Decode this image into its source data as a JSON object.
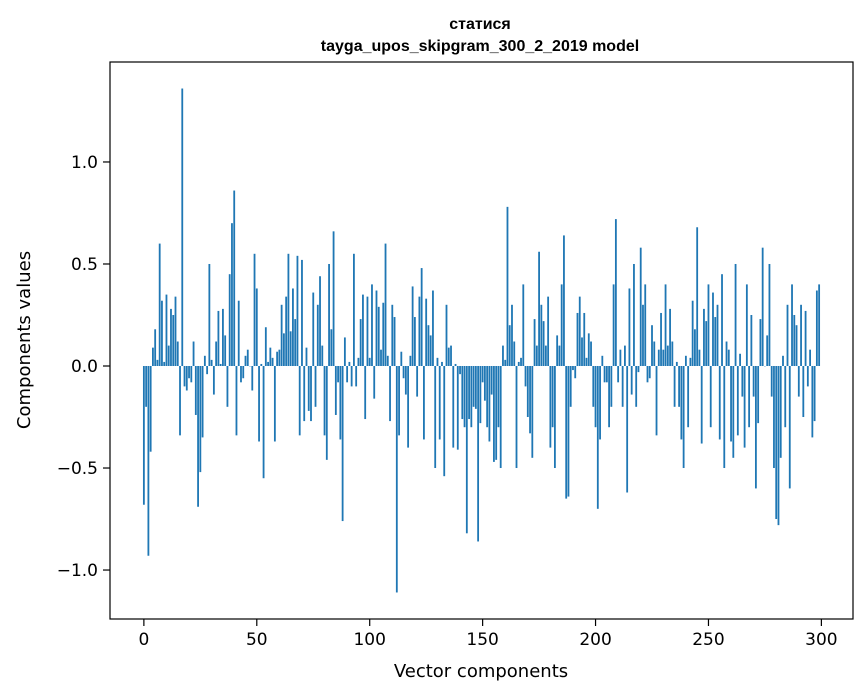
{
  "chart_data": {
    "type": "bar",
    "title": "статися",
    "subtitle": "tayga_upos_skipgram_300_2_2019 model",
    "xlabel": "Vector components",
    "ylabel": "Components values",
    "xlim": [
      -15,
      314
    ],
    "ylim": [
      -1.24,
      1.49
    ],
    "x_ticks": [
      0,
      50,
      100,
      150,
      200,
      250,
      300
    ],
    "x_tick_labels": [
      "0",
      "50",
      "100",
      "150",
      "200",
      "250",
      "300"
    ],
    "y_ticks": [
      -1.0,
      -0.5,
      0.0,
      0.5,
      1.0
    ],
    "y_tick_labels": [
      "−1.0",
      "−0.5",
      "0.0",
      "0.5",
      "1.0"
    ],
    "bar_color": "#1f77b4",
    "grid": false,
    "values": [
      -0.68,
      -0.2,
      -0.93,
      -0.42,
      0.09,
      0.18,
      0.03,
      0.6,
      0.32,
      0.02,
      0.35,
      0.1,
      0.28,
      0.25,
      0.34,
      0.12,
      -0.34,
      1.36,
      -0.1,
      -0.12,
      -0.06,
      -0.08,
      0.12,
      -0.24,
      -0.69,
      -0.52,
      -0.35,
      0.05,
      -0.04,
      0.5,
      0.03,
      -0.14,
      0.12,
      0.27,
      0.01,
      0.28,
      0.15,
      -0.2,
      0.45,
      0.7,
      0.86,
      -0.34,
      0.32,
      -0.08,
      -0.06,
      0.05,
      0.08,
      0.0,
      -0.12,
      0.55,
      0.38,
      -0.37,
      0.01,
      -0.55,
      0.19,
      0.02,
      0.09,
      0.04,
      -0.37,
      0.07,
      0.08,
      0.3,
      0.16,
      0.34,
      0.55,
      0.17,
      0.38,
      0.23,
      0.54,
      -0.34,
      0.52,
      -0.27,
      0.09,
      -0.22,
      -0.27,
      0.36,
      -0.2,
      0.3,
      0.44,
      0.1,
      -0.34,
      -0.46,
      0.5,
      0.18,
      0.66,
      -0.24,
      -0.08,
      -0.36,
      -0.76,
      0.14,
      -0.08,
      0.02,
      -0.1,
      0.55,
      -0.1,
      0.04,
      0.23,
      0.35,
      -0.26,
      0.34,
      0.04,
      0.4,
      -0.16,
      0.37,
      0.29,
      0.08,
      0.31,
      0.6,
      0.05,
      -0.27,
      0.3,
      0.24,
      -1.11,
      -0.34,
      0.07,
      -0.06,
      -0.14,
      -0.4,
      0.05,
      0.39,
      0.24,
      -0.15,
      0.34,
      0.48,
      -0.36,
      0.33,
      0.2,
      0.15,
      0.37,
      -0.5,
      0.04,
      -0.36,
      0.02,
      -0.54,
      0.3,
      0.09,
      0.1,
      -0.4,
      0.01,
      -0.41,
      -0.04,
      -0.26,
      -0.3,
      -0.82,
      -0.26,
      -0.3,
      -0.2,
      -0.21,
      -0.86,
      -0.28,
      -0.08,
      -0.17,
      -0.3,
      -0.37,
      -0.14,
      -0.47,
      -0.46,
      -0.3,
      -0.5,
      0.1,
      0.03,
      0.78,
      0.2,
      0.3,
      0.12,
      -0.5,
      0.02,
      0.04,
      0.4,
      -0.1,
      -0.25,
      -0.33,
      -0.45,
      0.23,
      0.1,
      0.56,
      0.3,
      0.22,
      0.1,
      0.34,
      -0.4,
      -0.3,
      -0.5,
      0.15,
      0.1,
      0.4,
      0.64,
      -0.65,
      -0.64,
      -0.2,
      -0.02,
      -0.06,
      0.26,
      0.34,
      0.14,
      0.26,
      0.04,
      0.16,
      0.12,
      -0.2,
      -0.3,
      -0.7,
      -0.36,
      0.05,
      -0.08,
      -0.08,
      -0.3,
      -0.2,
      0.4,
      0.72,
      -0.08,
      0.08,
      -0.2,
      0.1,
      -0.62,
      0.38,
      -0.14,
      0.5,
      -0.2,
      -0.03,
      0.58,
      0.3,
      0.4,
      -0.08,
      -0.06,
      0.2,
      0.12,
      -0.34,
      0.08,
      0.26,
      0.08,
      0.4,
      0.1,
      0.28,
      0.12,
      -0.2,
      0.02,
      -0.2,
      -0.36,
      -0.5,
      0.05,
      -0.3,
      0.04,
      0.32,
      0.18,
      0.68,
      0.08,
      -0.38,
      0.28,
      0.22,
      0.4,
      -0.3,
      0.36,
      0.24,
      0.3,
      -0.36,
      0.45,
      -0.5,
      0.12,
      0.08,
      -0.37,
      -0.45,
      0.5,
      -0.34,
      0.06,
      -0.15,
      -0.4,
      0.4,
      -0.3,
      0.25,
      -0.15,
      -0.6,
      -0.28,
      0.23,
      0.58,
      0.0,
      0.15,
      0.5,
      -0.15,
      -0.5,
      -0.75,
      -0.78,
      -0.45,
      0.05,
      -0.3,
      0.3,
      -0.6,
      0.4,
      0.25,
      0.2,
      -0.15,
      0.3,
      -0.25,
      0.27,
      -0.1,
      0.08,
      -0.35,
      -0.27,
      0.37,
      0.4
    ]
  }
}
